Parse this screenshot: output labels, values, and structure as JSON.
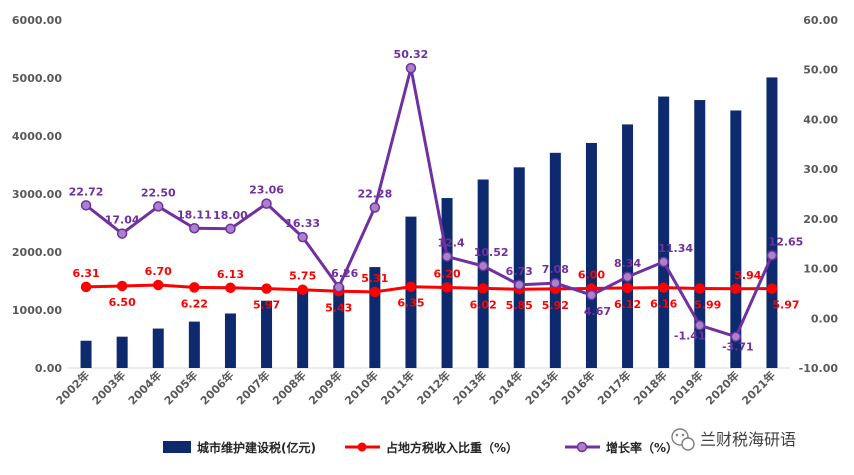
{
  "chart_data": {
    "type": "bar+line",
    "categories": [
      "2002年",
      "2003年",
      "2004年",
      "2005年",
      "2006年",
      "2007年",
      "2008年",
      "2009年",
      "2010年",
      "2011年",
      "2012年",
      "2013年",
      "2014年",
      "2015年",
      "2016年",
      "2017年",
      "2018年",
      "2019年",
      "2020年",
      "2021年"
    ],
    "series": [
      {
        "name": "城市维护建设税(亿元)",
        "type": "bar",
        "axis": "left",
        "color": "#0d2a6e",
        "values": [
          470,
          540,
          680,
          800,
          940,
          1160,
          1340,
          1420,
          1740,
          2610,
          2930,
          3250,
          3460,
          3710,
          3880,
          4200,
          4680,
          4620,
          4440,
          5010
        ]
      },
      {
        "name": "占地方税收入比重（%）",
        "type": "line",
        "axis": "right",
        "color": "#ff0000",
        "values": [
          6.31,
          6.5,
          6.7,
          6.22,
          6.13,
          5.97,
          5.75,
          5.43,
          5.31,
          6.35,
          6.2,
          6.02,
          5.85,
          5.92,
          6.0,
          6.12,
          6.16,
          5.99,
          5.94,
          5.97
        ],
        "labels": [
          "6.31",
          "6.50",
          "6.70",
          "6.22",
          "6.13",
          "5.97",
          "5.75",
          "5.43",
          "5.31",
          "6.35",
          "6.20",
          "6.02",
          "5.85",
          "5.92",
          "6.00",
          "6.12",
          "6.16",
          "5.99",
          "5.94",
          "5.97"
        ]
      },
      {
        "name": "增长率（%）",
        "type": "line",
        "axis": "right",
        "color": "#7030a0",
        "values": [
          22.72,
          17.04,
          22.5,
          18.11,
          18.0,
          23.06,
          16.33,
          6.26,
          22.28,
          50.32,
          12.41,
          10.52,
          6.73,
          7.08,
          4.67,
          8.34,
          11.34,
          -1.41,
          -3.71,
          12.65
        ],
        "labels": [
          "22.72",
          "17.04",
          "22.50",
          "18.11",
          "18.00",
          "23.06",
          "16.33",
          "6.26",
          "22.28",
          "50.32",
          "12.4",
          "10.52",
          "6.73",
          "7.08",
          "4.67",
          "8.34",
          "11.34",
          "-1.41",
          "-3.71",
          "12.65"
        ]
      }
    ],
    "y_left": {
      "min": 0,
      "max": 6000,
      "step": 1000,
      "tick_labels": [
        "0.00",
        "1000.00",
        "2000.00",
        "3000.00",
        "4000.00",
        "5000.00",
        "6000.00"
      ]
    },
    "y_right": {
      "min": -10,
      "max": 60,
      "step": 10,
      "tick_labels": [
        "-10.00",
        "0.00",
        "10.00",
        "20.00",
        "30.00",
        "40.00",
        "50.00",
        "60.00"
      ]
    },
    "grid": false,
    "legend_position": "bottom"
  },
  "legend": {
    "bar_label": "城市维护建设税(亿元)",
    "red_label": "占地方税收入比重（%）",
    "purple_label": "增长率（%）"
  },
  "watermark": {
    "text": "兰财税海研语",
    "icon": "wechat-icon"
  }
}
